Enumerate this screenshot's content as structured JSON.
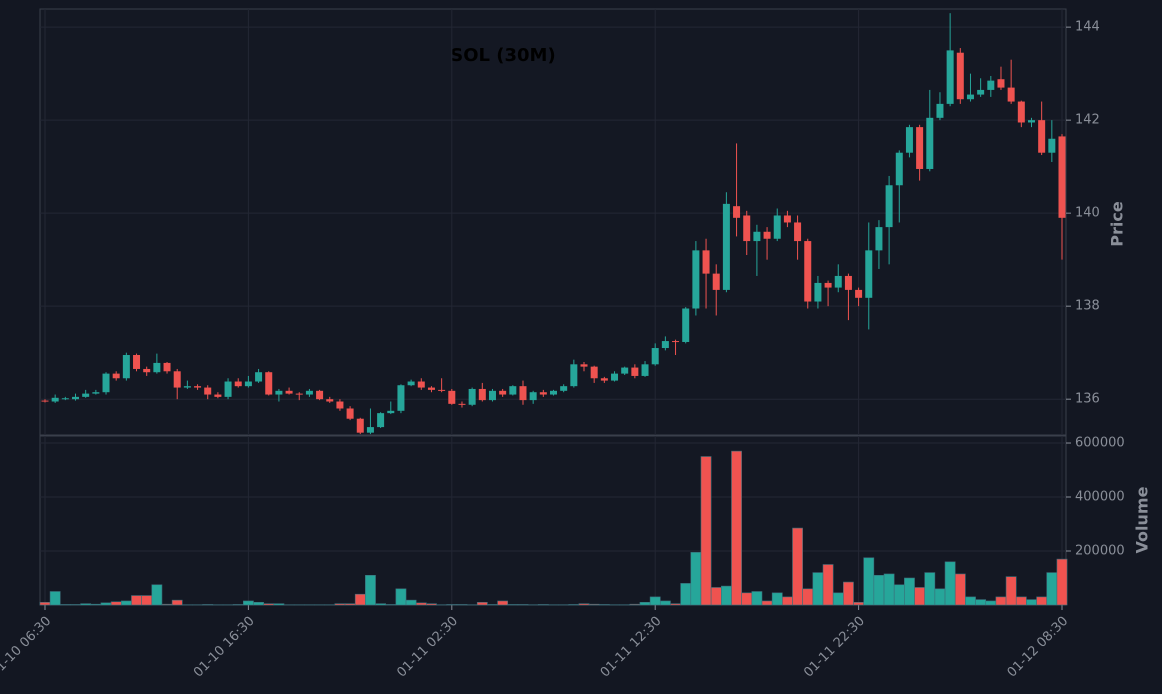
{
  "chart_data": {
    "type": "candlestick",
    "title": "SOL (30M)",
    "ylabel": "Price",
    "up_color": "#26a69a",
    "down_color": "#ef5350",
    "categories": [
      "01-10 06:30",
      null,
      null,
      null,
      null,
      null,
      null,
      null,
      null,
      null,
      null,
      null,
      null,
      null,
      null,
      null,
      null,
      null,
      null,
      null,
      "01-10 16:30",
      null,
      null,
      null,
      null,
      null,
      null,
      null,
      null,
      null,
      null,
      null,
      null,
      null,
      null,
      null,
      null,
      null,
      null,
      null,
      "01-11 02:30",
      null,
      null,
      null,
      null,
      null,
      null,
      null,
      null,
      null,
      null,
      null,
      null,
      null,
      null,
      null,
      null,
      null,
      null,
      null,
      "01-11 12:30",
      null,
      null,
      null,
      null,
      null,
      null,
      null,
      null,
      null,
      null,
      null,
      null,
      null,
      null,
      null,
      null,
      null,
      null,
      null,
      "01-11 22:30",
      null,
      null,
      null,
      null,
      null,
      null,
      null,
      null,
      null,
      null,
      null,
      null,
      null,
      null,
      null,
      null,
      null,
      null,
      null,
      "01-12 08:30"
    ],
    "open": [
      135.97,
      135.95,
      136.0,
      136.0,
      136.05,
      136.12,
      136.15,
      136.55,
      136.45,
      136.95,
      136.65,
      136.58,
      136.78,
      136.6,
      136.25,
      136.28,
      136.25,
      136.1,
      136.05,
      136.38,
      136.28,
      136.38,
      136.58,
      136.1,
      136.18,
      136.12,
      136.1,
      136.18,
      136.0,
      135.95,
      135.8,
      135.58,
      135.28,
      135.4,
      135.7,
      135.75,
      136.3,
      136.38,
      136.25,
      136.2,
      136.18,
      135.9,
      135.88,
      136.22,
      135.98,
      136.18,
      136.1,
      136.28,
      135.98,
      136.15,
      136.1,
      136.18,
      136.28,
      136.75,
      136.7,
      136.45,
      136.4,
      136.55,
      136.68,
      136.5,
      136.75,
      137.1,
      137.25,
      137.23,
      137.95,
      139.2,
      138.7,
      138.35,
      140.15,
      139.95,
      139.4,
      139.6,
      139.45,
      139.95,
      139.8,
      139.4,
      138.1,
      138.5,
      138.4,
      138.65,
      138.35,
      138.18,
      139.2,
      139.7,
      140.6,
      141.3,
      141.85,
      140.95,
      142.05,
      142.35,
      143.45,
      142.45,
      142.55,
      142.65,
      142.88,
      142.7,
      142.4,
      141.95,
      142.0,
      141.3,
      141.65
    ],
    "high": [
      136.0,
      136.1,
      136.05,
      136.12,
      136.2,
      136.2,
      136.58,
      136.6,
      137.0,
      136.98,
      136.7,
      136.98,
      136.8,
      136.65,
      136.4,
      136.32,
      136.3,
      136.15,
      136.45,
      136.45,
      136.5,
      136.65,
      136.6,
      136.22,
      136.25,
      136.15,
      136.22,
      136.2,
      136.05,
      136.0,
      135.85,
      135.6,
      135.8,
      135.72,
      135.95,
      136.32,
      136.42,
      136.45,
      136.28,
      136.45,
      136.22,
      135.95,
      136.25,
      136.35,
      136.22,
      136.22,
      136.3,
      136.4,
      136.18,
      136.2,
      136.2,
      136.32,
      136.85,
      136.8,
      136.72,
      136.48,
      136.6,
      136.7,
      136.75,
      136.82,
      137.2,
      137.35,
      137.28,
      137.98,
      139.4,
      139.45,
      138.9,
      140.45,
      141.5,
      140.05,
      139.75,
      139.7,
      140.1,
      140.05,
      139.95,
      139.45,
      138.65,
      138.55,
      138.9,
      138.7,
      138.4,
      139.8,
      139.85,
      140.8,
      141.35,
      141.9,
      141.9,
      142.65,
      142.6,
      144.3,
      143.55,
      143.0,
      142.9,
      142.95,
      143.15,
      143.3,
      142.42,
      142.05,
      142.4,
      142.0,
      141.7
    ],
    "low": [
      135.93,
      135.92,
      135.98,
      135.97,
      136.03,
      136.1,
      136.1,
      136.4,
      136.4,
      136.6,
      136.5,
      136.55,
      136.55,
      136.0,
      136.22,
      136.2,
      136.0,
      136.02,
      136.0,
      136.25,
      136.25,
      136.35,
      136.08,
      135.95,
      136.1,
      135.98,
      136.05,
      135.98,
      135.92,
      135.75,
      135.55,
      135.25,
      135.25,
      135.38,
      135.68,
      135.7,
      136.28,
      136.2,
      136.15,
      136.15,
      135.88,
      135.82,
      135.85,
      135.95,
      135.95,
      136.05,
      136.08,
      135.88,
      135.9,
      136.05,
      136.08,
      136.15,
      136.25,
      136.6,
      136.35,
      136.35,
      136.38,
      136.52,
      136.45,
      136.48,
      136.72,
      137.05,
      136.95,
      137.2,
      137.8,
      137.95,
      137.8,
      138.3,
      139.5,
      139.1,
      138.65,
      139.0,
      139.4,
      139.7,
      139.0,
      137.95,
      137.95,
      138.0,
      138.3,
      137.7,
      138.0,
      137.5,
      138.8,
      138.9,
      139.8,
      141.2,
      140.7,
      140.9,
      142.0,
      142.3,
      142.35,
      142.4,
      142.5,
      142.5,
      142.65,
      142.35,
      141.85,
      141.85,
      141.25,
      141.1,
      139.0
    ],
    "close": [
      135.95,
      136.03,
      136.02,
      136.05,
      136.12,
      136.15,
      136.55,
      136.45,
      136.95,
      136.65,
      136.58,
      136.78,
      136.6,
      136.25,
      136.28,
      136.25,
      136.1,
      136.05,
      136.38,
      136.28,
      136.38,
      136.58,
      136.1,
      136.18,
      136.12,
      136.1,
      136.18,
      136.0,
      135.95,
      135.8,
      135.58,
      135.28,
      135.4,
      135.7,
      135.75,
      136.3,
      136.38,
      136.25,
      136.2,
      136.18,
      135.9,
      135.88,
      136.22,
      135.98,
      136.18,
      136.1,
      136.28,
      135.98,
      136.15,
      136.1,
      136.18,
      136.28,
      136.75,
      136.7,
      136.45,
      136.4,
      136.55,
      136.68,
      136.5,
      136.75,
      137.1,
      137.25,
      137.23,
      137.95,
      139.2,
      138.7,
      138.35,
      140.2,
      139.9,
      139.4,
      139.6,
      139.45,
      139.95,
      139.8,
      139.4,
      138.1,
      138.5,
      138.4,
      138.65,
      138.35,
      138.18,
      139.2,
      139.7,
      140.6,
      141.3,
      141.85,
      140.95,
      142.05,
      142.35,
      143.5,
      142.45,
      142.55,
      142.65,
      142.85,
      142.7,
      142.4,
      141.95,
      142.0,
      141.3,
      141.6,
      139.9
    ],
    "ylim": [
      135.23,
      144.39
    ],
    "yticks": [
      136,
      138,
      140,
      142,
      144
    ],
    "grid": true,
    "volume": {
      "label": "Volume",
      "values": [
        10000,
        50000,
        2000,
        2000,
        5000,
        3000,
        8000,
        12000,
        15000,
        35000,
        35000,
        75000,
        3000,
        18000,
        1000,
        1000,
        2000,
        1000,
        1000,
        2000,
        15000,
        10000,
        5000,
        5000,
        1000,
        1000,
        1000,
        1000,
        1000,
        5000,
        5000,
        40000,
        110000,
        5000,
        2000,
        60000,
        18000,
        8000,
        5000,
        1000,
        2000,
        2000,
        1000,
        10000,
        2000,
        15000,
        2000,
        2000,
        1000,
        2000,
        1000,
        1000,
        2000,
        5000,
        3000,
        2000,
        1000,
        1000,
        3000,
        10000,
        30000,
        15000,
        5000,
        80000,
        195000,
        550000,
        65000,
        70000,
        570000,
        45000,
        50000,
        15000,
        45000,
        30000,
        285000,
        60000,
        120000,
        150000,
        45000,
        85000,
        10000,
        175000,
        110000,
        115000,
        75000,
        100000,
        65000,
        120000,
        60000,
        160000,
        115000,
        30000,
        20000,
        15000,
        30000,
        105000,
        30000,
        20000,
        30000,
        120000,
        170000
      ],
      "ylim": [
        0,
        626000
      ],
      "yticks": [
        200000,
        400000,
        600000
      ]
    }
  }
}
